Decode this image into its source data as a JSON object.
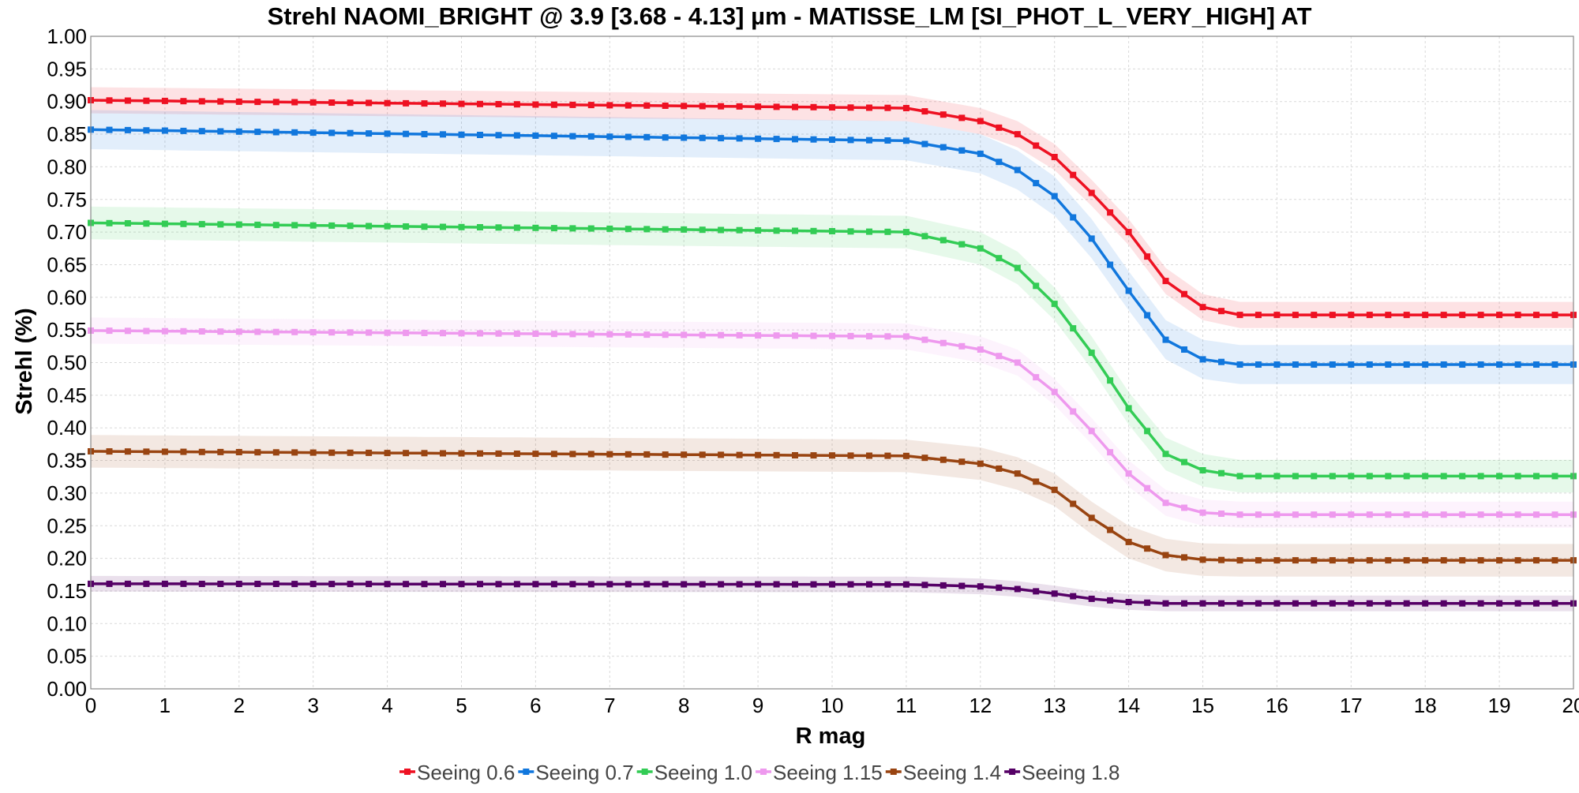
{
  "chart_data": {
    "type": "line",
    "title": "Strehl NAOMI_BRIGHT @ 3.9 [3.68 - 4.13] µm - MATISSE_LM [SI_PHOT_L_VERY_HIGH] AT",
    "xlabel": "R mag",
    "ylabel": "Strehl (%)",
    "xlim": [
      0,
      20
    ],
    "ylim": [
      0,
      1
    ],
    "x_ticks": [
      "0",
      "1",
      "2",
      "3",
      "4",
      "5",
      "6",
      "7",
      "8",
      "9",
      "10",
      "11",
      "12",
      "13",
      "14",
      "15",
      "16",
      "17",
      "18",
      "19",
      "20"
    ],
    "y_ticks": [
      "0.00",
      "0.05",
      "0.10",
      "0.15",
      "0.20",
      "0.25",
      "0.30",
      "0.35",
      "0.40",
      "0.45",
      "0.50",
      "0.55",
      "0.60",
      "0.65",
      "0.70",
      "0.75",
      "0.80",
      "0.85",
      "0.90",
      "0.95",
      "1.00"
    ],
    "grid": true,
    "legend_position": "bottom",
    "marker": "square",
    "uncertainty_band": true,
    "x": [
      0,
      11,
      12,
      12.5,
      13,
      13.5,
      14,
      14.5,
      15,
      15.5,
      20
    ],
    "series": [
      {
        "name": "Seeing 0.6",
        "color": "#ee1122",
        "band": 0.02,
        "values": [
          0.902,
          0.89,
          0.87,
          0.85,
          0.815,
          0.76,
          0.7,
          0.625,
          0.585,
          0.573,
          0.573
        ]
      },
      {
        "name": "Seeing 0.7",
        "color": "#1177dd",
        "band": 0.03,
        "values": [
          0.857,
          0.84,
          0.82,
          0.795,
          0.755,
          0.69,
          0.61,
          0.535,
          0.505,
          0.497,
          0.497
        ]
      },
      {
        "name": "Seeing 1.0",
        "color": "#33cc55",
        "band": 0.025,
        "values": [
          0.714,
          0.7,
          0.675,
          0.645,
          0.59,
          0.515,
          0.43,
          0.36,
          0.335,
          0.326,
          0.326
        ]
      },
      {
        "name": "Seeing 1.15",
        "color": "#ee99ee",
        "band": 0.02,
        "values": [
          0.549,
          0.54,
          0.52,
          0.5,
          0.455,
          0.395,
          0.33,
          0.285,
          0.27,
          0.267,
          0.267
        ]
      },
      {
        "name": "Seeing 1.4",
        "color": "#994411",
        "band": 0.025,
        "values": [
          0.364,
          0.357,
          0.345,
          0.33,
          0.305,
          0.262,
          0.225,
          0.205,
          0.198,
          0.197,
          0.197
        ]
      },
      {
        "name": "Seeing 1.8",
        "color": "#550066",
        "band": 0.012,
        "values": [
          0.161,
          0.16,
          0.157,
          0.153,
          0.146,
          0.138,
          0.133,
          0.131,
          0.131,
          0.131,
          0.131
        ]
      }
    ]
  }
}
